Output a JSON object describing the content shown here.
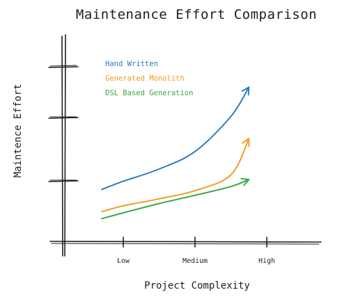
{
  "chart_data": {
    "type": "line",
    "title": "Maintenance Effort Comparison",
    "xlabel": "Project Complexity",
    "ylabel": "Maintence Effort",
    "categories": [
      "Low",
      "Medium",
      "High"
    ],
    "x_range": [
      "Low",
      "High"
    ],
    "ylim": [
      0,
      3
    ],
    "grid": false,
    "legend_position": "top-left",
    "series": [
      {
        "name": "Hand Written",
        "color": "#2f7bbd",
        "points": [
          {
            "x": -0.3,
            "y": 0.9
          },
          {
            "x": 0.0,
            "y": 1.04
          },
          {
            "x": 0.5,
            "y": 1.25
          },
          {
            "x": 1.0,
            "y": 1.55
          },
          {
            "x": 1.5,
            "y": 2.15
          },
          {
            "x": 1.75,
            "y": 2.65
          }
        ]
      },
      {
        "name": "Generated Monolith",
        "color": "#f39c1f",
        "points": [
          {
            "x": -0.3,
            "y": 0.52
          },
          {
            "x": 0.0,
            "y": 0.62
          },
          {
            "x": 0.5,
            "y": 0.74
          },
          {
            "x": 1.0,
            "y": 0.88
          },
          {
            "x": 1.5,
            "y": 1.15
          },
          {
            "x": 1.75,
            "y": 1.77
          }
        ]
      },
      {
        "name": "DSL Based Generation",
        "color": "#3aa845",
        "points": [
          {
            "x": -0.3,
            "y": 0.4
          },
          {
            "x": 0.0,
            "y": 0.5
          },
          {
            "x": 0.5,
            "y": 0.66
          },
          {
            "x": 1.0,
            "y": 0.8
          },
          {
            "x": 1.5,
            "y": 0.95
          },
          {
            "x": 1.75,
            "y": 1.07
          }
        ]
      }
    ]
  }
}
